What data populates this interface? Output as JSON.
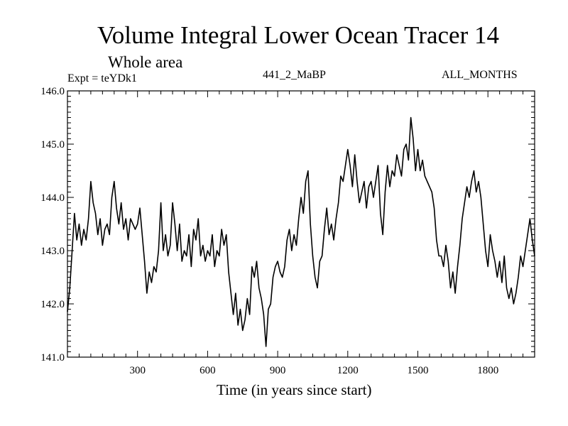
{
  "header": {
    "title": "Volume Integral Lower Ocean Tracer 14",
    "subtitle": "Whole area",
    "expt": "Expt = teYDk1",
    "center_label": "441_2_MaBP",
    "right_label": "ALL_MONTHS"
  },
  "chart_data": {
    "type": "line",
    "title": "Volume Integral Lower Ocean Tracer 14",
    "xlabel": "Time (in years since start)",
    "ylabel": "",
    "xlim": [
      0,
      2000
    ],
    "ylim": [
      141.0,
      146.0
    ],
    "xticks": [
      300,
      600,
      900,
      1200,
      1500,
      1800
    ],
    "xtick_labels": [
      "300",
      "600",
      "900",
      "1200",
      "1500",
      "1800"
    ],
    "yticks": [
      141.0,
      142.0,
      143.0,
      144.0,
      145.0,
      146.0
    ],
    "ytick_labels": [
      "141.0",
      "142.0",
      "143.0",
      "144.0",
      "145.0",
      "146.0"
    ],
    "line_color": "#000000",
    "series": [
      {
        "name": "Tracer 14",
        "x": [
          0,
          10,
          20,
          30,
          40,
          50,
          60,
          70,
          80,
          90,
          100,
          110,
          120,
          130,
          140,
          150,
          160,
          170,
          180,
          190,
          200,
          210,
          220,
          230,
          240,
          250,
          260,
          270,
          280,
          290,
          300,
          310,
          320,
          330,
          340,
          350,
          360,
          370,
          380,
          390,
          400,
          410,
          420,
          430,
          440,
          450,
          460,
          470,
          480,
          490,
          500,
          510,
          520,
          530,
          540,
          550,
          560,
          570,
          580,
          590,
          600,
          610,
          620,
          630,
          640,
          650,
          660,
          670,
          680,
          690,
          700,
          710,
          720,
          730,
          740,
          750,
          760,
          770,
          780,
          790,
          800,
          810,
          820,
          830,
          840,
          850,
          860,
          870,
          880,
          890,
          900,
          910,
          920,
          930,
          940,
          950,
          960,
          970,
          980,
          990,
          1000,
          1010,
          1020,
          1030,
          1040,
          1050,
          1060,
          1070,
          1080,
          1090,
          1100,
          1110,
          1120,
          1130,
          1140,
          1150,
          1160,
          1170,
          1180,
          1190,
          1200,
          1210,
          1220,
          1230,
          1240,
          1250,
          1260,
          1270,
          1280,
          1290,
          1300,
          1310,
          1320,
          1330,
          1340,
          1350,
          1360,
          1370,
          1380,
          1390,
          1400,
          1410,
          1420,
          1430,
          1440,
          1450,
          1460,
          1470,
          1480,
          1490,
          1500,
          1510,
          1520,
          1530,
          1540,
          1550,
          1560,
          1570,
          1580,
          1590,
          1600,
          1610,
          1620,
          1630,
          1640,
          1650,
          1660,
          1670,
          1680,
          1690,
          1700,
          1710,
          1720,
          1730,
          1740,
          1750,
          1760,
          1770,
          1780,
          1790,
          1800,
          1810,
          1820,
          1830,
          1840,
          1850,
          1860,
          1870,
          1880,
          1890,
          1900,
          1910,
          1920,
          1930,
          1940,
          1950,
          1960,
          1970,
          1980,
          1990,
          2000
        ],
        "y": [
          141.85,
          142.3,
          143.0,
          143.7,
          143.2,
          143.5,
          143.1,
          143.4,
          143.2,
          143.6,
          144.3,
          143.9,
          143.7,
          143.3,
          143.6,
          143.1,
          143.4,
          143.5,
          143.3,
          144.0,
          144.3,
          143.8,
          143.5,
          143.9,
          143.4,
          143.6,
          143.2,
          143.6,
          143.5,
          143.4,
          143.5,
          143.8,
          143.3,
          142.8,
          142.2,
          142.6,
          142.4,
          142.7,
          142.6,
          143.0,
          143.9,
          143.0,
          143.3,
          142.9,
          143.1,
          143.9,
          143.5,
          143.0,
          143.5,
          142.8,
          143.0,
          142.9,
          143.3,
          142.7,
          143.4,
          143.2,
          143.6,
          142.9,
          143.1,
          142.8,
          143.0,
          142.9,
          143.3,
          142.7,
          143.0,
          142.9,
          143.4,
          143.1,
          143.3,
          142.6,
          142.2,
          141.8,
          142.2,
          141.6,
          141.9,
          141.5,
          141.7,
          142.1,
          141.8,
          142.7,
          142.5,
          142.8,
          142.3,
          142.1,
          141.8,
          141.2,
          141.9,
          142.0,
          142.5,
          142.7,
          142.8,
          142.6,
          142.5,
          142.7,
          143.2,
          143.4,
          143.0,
          143.3,
          143.1,
          143.6,
          144.0,
          143.7,
          144.3,
          144.5,
          143.5,
          142.9,
          142.5,
          142.3,
          142.8,
          142.9,
          143.4,
          143.8,
          143.3,
          143.5,
          143.2,
          143.6,
          143.9,
          144.4,
          144.3,
          144.6,
          144.9,
          144.6,
          144.2,
          144.8,
          144.3,
          143.9,
          144.1,
          144.3,
          143.8,
          144.2,
          144.3,
          144.0,
          144.3,
          144.6,
          143.7,
          143.3,
          144.1,
          144.6,
          144.2,
          144.5,
          144.4,
          144.8,
          144.6,
          144.4,
          144.9,
          145.0,
          144.7,
          145.5,
          145.1,
          144.5,
          144.9,
          144.5,
          144.7,
          144.4,
          144.3,
          144.2,
          144.1,
          143.8,
          143.2,
          142.9,
          142.9,
          142.7,
          143.1,
          142.8,
          142.3,
          142.6,
          142.2,
          142.7,
          143.1,
          143.6,
          143.9,
          144.2,
          144.0,
          144.3,
          144.5,
          144.1,
          144.3,
          144.0,
          143.5,
          143.0,
          142.7,
          143.3,
          143.0,
          142.8,
          142.5,
          142.8,
          142.4,
          142.9,
          142.3,
          142.1,
          142.3,
          142.0,
          142.2,
          142.5,
          142.9,
          142.7,
          143.0,
          143.3,
          143.6,
          143.2,
          142.9
        ]
      }
    ]
  }
}
